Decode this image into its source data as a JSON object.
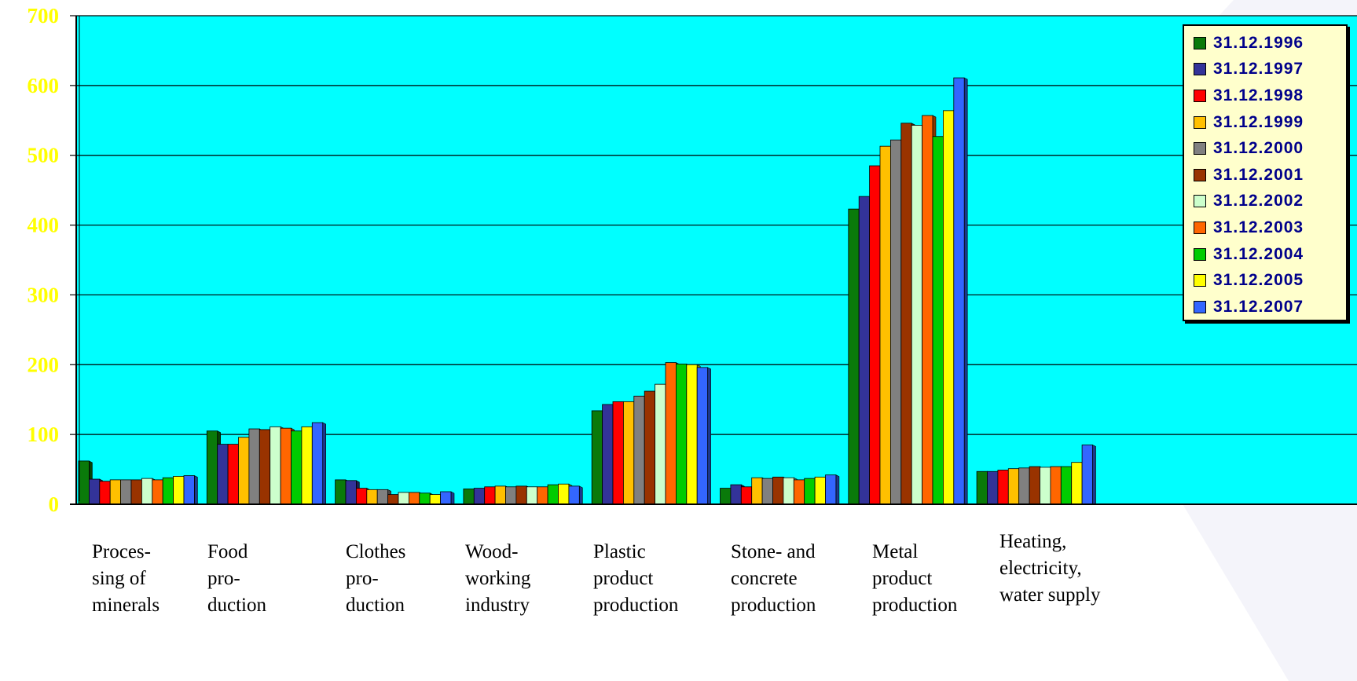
{
  "chart_data": {
    "type": "bar",
    "title": "",
    "xlabel": "",
    "ylabel": "",
    "ylim": [
      0,
      700
    ],
    "yticks": [
      "0",
      "100",
      "200",
      "300",
      "400",
      "500",
      "600",
      "700"
    ],
    "grid": true,
    "legend_position": "top-right",
    "categories": [
      "Proces-\nsing of\nminerals",
      "Food\npro-\nduction",
      "Clothes\npro-\nduction",
      "Wood-\nworking\nindustry",
      "Plastic\nproduct\nproduction",
      "Stone- and\nconcrete\nproduction",
      "Metal\nproduct\nproduction",
      "Heating,\nelectricity,\nwater supply"
    ],
    "series": [
      {
        "name": "31.12.1996",
        "color": "#0a7a0a",
        "values": [
          62,
          105,
          35,
          22,
          134,
          23,
          423,
          47
        ]
      },
      {
        "name": "31.12.1997",
        "color": "#333399",
        "values": [
          36,
          86,
          34,
          23,
          143,
          28,
          441,
          47
        ]
      },
      {
        "name": "31.12.1998",
        "color": "#ff0000",
        "values": [
          33,
          86,
          23,
          25,
          147,
          25,
          485,
          49
        ]
      },
      {
        "name": "31.12.1999",
        "color": "#ffc000",
        "values": [
          35,
          96,
          21,
          26,
          147,
          38,
          513,
          51
        ]
      },
      {
        "name": "31.12.2000",
        "color": "#808080",
        "values": [
          35,
          108,
          21,
          25,
          155,
          37,
          522,
          52
        ]
      },
      {
        "name": "31.12.2001",
        "color": "#993300",
        "values": [
          35,
          107,
          14,
          26,
          162,
          39,
          546,
          54
        ]
      },
      {
        "name": "31.12.2002",
        "color": "#ccffcc",
        "values": [
          37,
          111,
          17,
          25,
          172,
          38,
          543,
          53
        ]
      },
      {
        "name": "31.12.2003",
        "color": "#ff6600",
        "values": [
          35,
          109,
          17,
          25,
          203,
          35,
          557,
          54
        ]
      },
      {
        "name": "31.12.2004",
        "color": "#00cc00",
        "values": [
          38,
          105,
          16,
          28,
          201,
          37,
          527,
          54
        ]
      },
      {
        "name": "31.12.2005",
        "color": "#ffff00",
        "values": [
          40,
          111,
          14,
          29,
          200,
          39,
          564,
          60
        ]
      },
      {
        "name": "31.12.2007",
        "color": "#3366ff",
        "values": [
          41,
          117,
          18,
          26,
          196,
          42,
          611,
          85
        ]
      }
    ]
  }
}
